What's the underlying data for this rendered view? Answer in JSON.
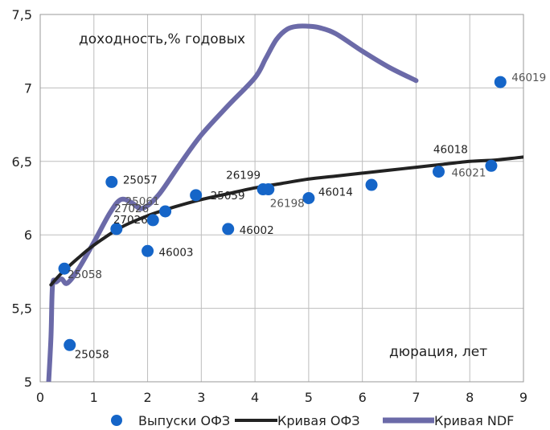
{
  "chart_data": {
    "type": "scatter",
    "title": "",
    "xlabel": "",
    "ylabel": "",
    "xlim": [
      0,
      9
    ],
    "ylim": [
      5,
      7.5
    ],
    "x_ticks": [
      "0",
      "1",
      "2",
      "3",
      "4",
      "5",
      "6",
      "7",
      "8",
      "9"
    ],
    "y_ticks": [
      "5",
      "5,5",
      "6",
      "6,5",
      "7",
      "7,5"
    ],
    "grid": true,
    "annotations": {
      "yield_label": "доходность,% годовых",
      "duration_label": "дюрация, лет"
    },
    "legend": {
      "placement": "bottom",
      "items": [
        {
          "label": "Выпуски ОФЗ",
          "kind": "marker",
          "color": "#1565c8"
        },
        {
          "label": "Кривая ОФЗ",
          "kind": "line",
          "color": "#222222"
        },
        {
          "label": "Кривая NDF",
          "kind": "line",
          "color": "#6b6aa8"
        }
      ]
    },
    "series": [
      {
        "name": "Выпуски ОФЗ",
        "type": "scatter",
        "color": "#1565c8",
        "points": [
          {
            "x": 0.45,
            "y": 5.77,
            "label": "25058"
          },
          {
            "x": 0.55,
            "y": 5.25,
            "label": "25058"
          },
          {
            "x": 1.33,
            "y": 6.36,
            "label": "25057"
          },
          {
            "x": 1.42,
            "y": 6.04,
            "label": "27026"
          },
          {
            "x": 2.0,
            "y": 5.89,
            "label": "46003"
          },
          {
            "x": 2.1,
            "y": 6.1,
            "label": "27026"
          },
          {
            "x": 2.33,
            "y": 6.16,
            "label": "25061"
          },
          {
            "x": 2.9,
            "y": 6.27,
            "label": "25059"
          },
          {
            "x": 3.5,
            "y": 6.04,
            "label": "46002"
          },
          {
            "x": 4.15,
            "y": 6.31,
            "label": "26199"
          },
          {
            "x": 4.25,
            "y": 6.31,
            "label": "26198"
          },
          {
            "x": 5.0,
            "y": 6.25,
            "label": "46014"
          },
          {
            "x": 6.17,
            "y": 6.34,
            "label": ""
          },
          {
            "x": 7.42,
            "y": 6.43,
            "label": "46021"
          },
          {
            "x": 8.4,
            "y": 6.47,
            "label": "46018"
          },
          {
            "x": 8.57,
            "y": 7.04,
            "label": "46019"
          }
        ]
      },
      {
        "name": "Кривая ОФЗ",
        "type": "line",
        "color": "#222222",
        "x": [
          0.2,
          0.4,
          0.7,
          1.0,
          1.5,
          2.0,
          2.5,
          3.0,
          3.5,
          4.0,
          4.5,
          5.0,
          5.5,
          6.0,
          6.5,
          7.0,
          7.5,
          8.0,
          8.5,
          9.0
        ],
        "y": [
          5.66,
          5.74,
          5.84,
          5.93,
          6.05,
          6.13,
          6.19,
          6.24,
          6.28,
          6.32,
          6.35,
          6.38,
          6.4,
          6.42,
          6.44,
          6.46,
          6.48,
          6.5,
          6.51,
          6.53
        ]
      },
      {
        "name": "Кривая NDF",
        "type": "line",
        "color": "#6b6aa8",
        "x": [
          0.15,
          0.2,
          0.23,
          0.3,
          0.4,
          0.5,
          0.7,
          1.0,
          1.3,
          1.5,
          1.7,
          1.9,
          2.2,
          2.6,
          3.0,
          3.5,
          4.0,
          4.2,
          4.4,
          4.6,
          4.8,
          5.0,
          5.2,
          5.5,
          6.0,
          6.5,
          7.0
        ],
        "y": [
          4.95,
          5.3,
          5.66,
          5.68,
          5.7,
          5.67,
          5.76,
          5.95,
          6.15,
          6.24,
          6.22,
          6.18,
          6.27,
          6.48,
          6.68,
          6.88,
          7.07,
          7.2,
          7.33,
          7.4,
          7.42,
          7.42,
          7.41,
          7.37,
          7.25,
          7.14,
          7.05
        ]
      }
    ]
  }
}
